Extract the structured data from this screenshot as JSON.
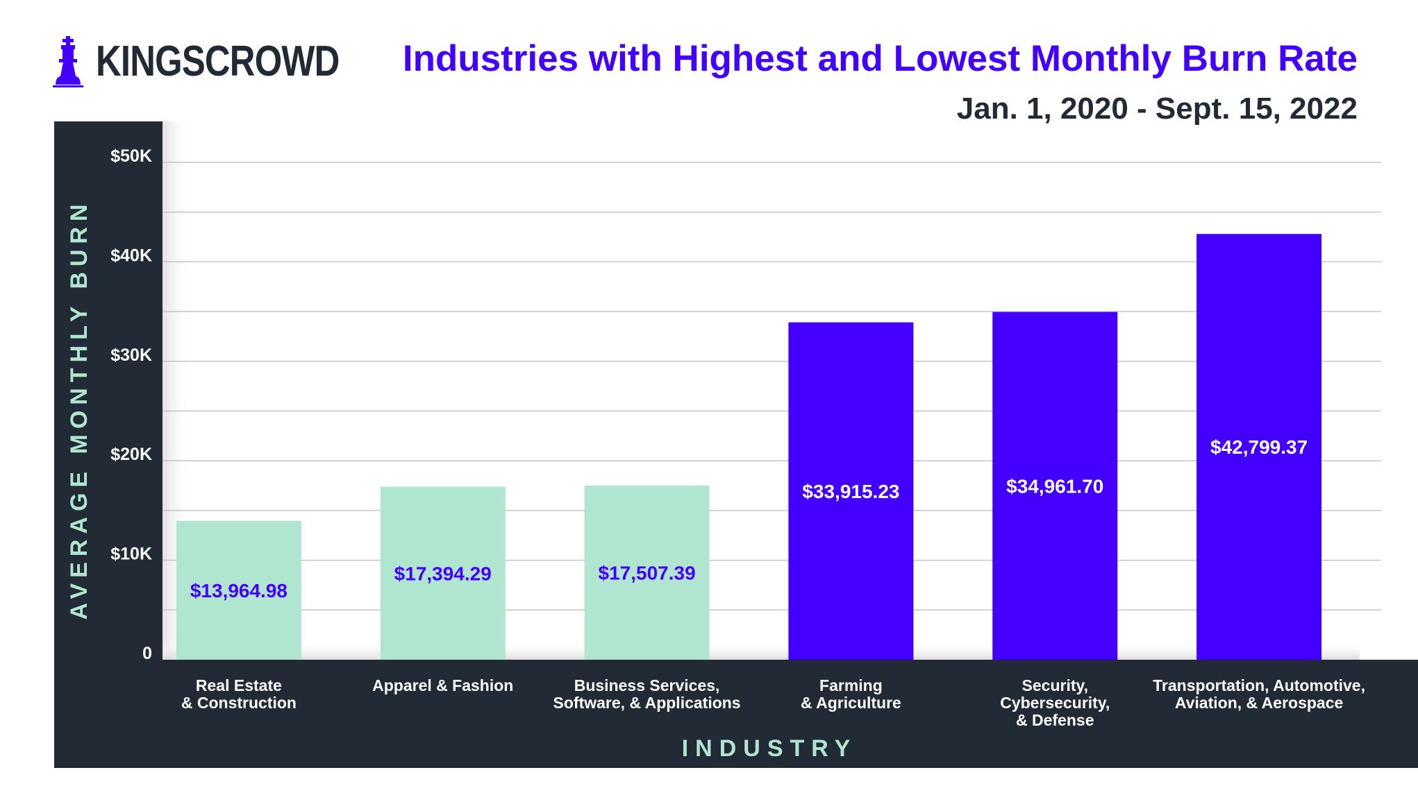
{
  "brand": {
    "name": "KINGSCROWD",
    "icon": "chess-king-icon",
    "color": "#4400ff"
  },
  "colors": {
    "dark_panel": "#212a35",
    "low": "#b0e6d0",
    "high": "#4400ff",
    "axis_title": "#b0e6d0"
  },
  "chart_data": {
    "type": "bar",
    "title": "Industries with Highest and Lowest Monthly Burn Rate",
    "subtitle": "Jan. 1, 2020 - Sept. 15, 2022",
    "xlabel": "INDUSTRY",
    "ylabel": "AVERAGE MONTHLY BURN",
    "ylim": [
      0,
      50000
    ],
    "grid": true,
    "y_ticks": [
      {
        "value": 0,
        "label": "0"
      },
      {
        "value": 10000,
        "label": "$10K"
      },
      {
        "value": 20000,
        "label": "$20K"
      },
      {
        "value": 30000,
        "label": "$30K"
      },
      {
        "value": 40000,
        "label": "$40K"
      },
      {
        "value": 50000,
        "label": "$50K"
      }
    ],
    "categories": [
      [
        "Real Estate",
        "& Construction"
      ],
      [
        "Apparel & Fashion"
      ],
      [
        "Business Services,",
        "Software, & Applications"
      ],
      [
        "Farming",
        "& Agriculture"
      ],
      [
        "Security,",
        "Cybersecurity,",
        "& Defense"
      ],
      [
        "Transportation, Automotive,",
        "Aviation, & Aerospace"
      ]
    ],
    "values": [
      13964.98,
      17394.29,
      17507.39,
      33915.23,
      34961.7,
      42799.37
    ],
    "data_labels": [
      "$13,964.98",
      "$17,394.29",
      "$17,507.39",
      "$33,915.23",
      "$34,961.70",
      "$42,799.37"
    ],
    "groups": [
      "low",
      "low",
      "low",
      "high",
      "high",
      "high"
    ]
  }
}
